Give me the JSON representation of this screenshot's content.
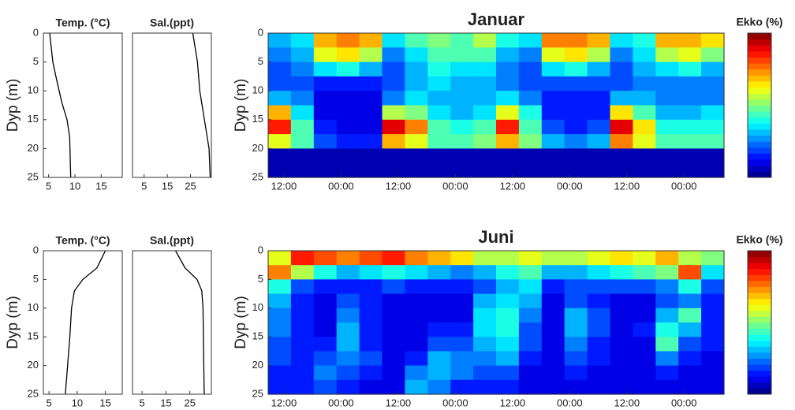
{
  "chart_data": [
    {
      "type": "profile",
      "title": "Temp. (°C)",
      "ylabel": "Dyp (m)",
      "color": "#000000",
      "x": [
        5.2,
        5.8,
        6.5,
        7.5,
        8.5,
        9,
        9.2
      ],
      "y": [
        0,
        5,
        8,
        12,
        15,
        18,
        25
      ],
      "xlim": [
        4,
        19
      ],
      "xticks": [
        5,
        10,
        15
      ],
      "ylim": [
        0,
        25
      ],
      "yticks": [
        0,
        5,
        10,
        15,
        20,
        25
      ]
    },
    {
      "type": "profile",
      "title": "Sal.(ppt)",
      "color": "#000000",
      "x": [
        26,
        28,
        29,
        31,
        33,
        33.5
      ],
      "y": [
        0,
        5,
        10,
        15,
        20,
        25
      ],
      "xlim": [
        0,
        34
      ],
      "xticks": [
        5,
        15,
        25
      ],
      "ylim": [
        0,
        25
      ]
    },
    {
      "type": "echogram",
      "title": "Januar",
      "ylabel": "Dyp (m)",
      "colorbar_label": "Ekko (%)",
      "zlim": [
        0,
        100
      ],
      "xlim": [
        8.7,
        104.4
      ],
      "xticks": [
        {
          "value": 12,
          "label": "12:00"
        },
        {
          "value": 24,
          "label": "00:00"
        },
        {
          "value": 36,
          "label": "12:00"
        },
        {
          "value": 48,
          "label": "00:00"
        },
        {
          "value": 60,
          "label": "12:00"
        },
        {
          "value": 72,
          "label": "00:00"
        },
        {
          "value": 84,
          "label": "12:00"
        },
        {
          "value": 96,
          "label": "00:00"
        }
      ],
      "ylim": [
        0,
        25
      ],
      "yticks": [
        0,
        5,
        10,
        15,
        20,
        25
      ],
      "z": [
        [
          30,
          35,
          70,
          75,
          70,
          35,
          45,
          50,
          45,
          55,
          40,
          35,
          75,
          75,
          70,
          35,
          40,
          70,
          70,
          65
        ],
        [
          25,
          30,
          60,
          65,
          55,
          25,
          35,
          45,
          45,
          45,
          30,
          25,
          60,
          65,
          55,
          25,
          35,
          55,
          60,
          50
        ],
        [
          20,
          25,
          35,
          40,
          30,
          20,
          30,
          40,
          35,
          35,
          25,
          20,
          35,
          40,
          30,
          20,
          30,
          35,
          40,
          30
        ],
        [
          20,
          20,
          15,
          15,
          15,
          20,
          30,
          35,
          30,
          30,
          25,
          20,
          20,
          20,
          20,
          20,
          25,
          25,
          25,
          25
        ],
        [
          30,
          25,
          10,
          10,
          10,
          25,
          35,
          30,
          30,
          30,
          35,
          25,
          15,
          15,
          15,
          30,
          30,
          25,
          25,
          25
        ],
        [
          70,
          35,
          10,
          10,
          10,
          55,
          50,
          35,
          30,
          35,
          60,
          40,
          15,
          15,
          15,
          65,
          45,
          30,
          30,
          35
        ],
        [
          85,
          45,
          15,
          10,
          10,
          90,
          75,
          45,
          40,
          45,
          85,
          45,
          20,
          15,
          20,
          90,
          65,
          40,
          40,
          40
        ],
        [
          60,
          45,
          20,
          15,
          15,
          70,
          60,
          45,
          45,
          50,
          70,
          50,
          30,
          25,
          30,
          75,
          60,
          45,
          45,
          45
        ],
        [
          5,
          5,
          5,
          5,
          5,
          5,
          5,
          5,
          5,
          5,
          5,
          5,
          5,
          5,
          5,
          5,
          5,
          5,
          5,
          5
        ],
        [
          5,
          5,
          5,
          5,
          5,
          5,
          5,
          5,
          5,
          5,
          5,
          5,
          5,
          5,
          5,
          5,
          5,
          5,
          5,
          5
        ]
      ]
    },
    {
      "type": "profile",
      "title": "Temp. (°C)",
      "ylabel": "Dyp (m)",
      "color": "#000000",
      "x": [
        15,
        13.5,
        11,
        9.5,
        9,
        8.7,
        8.3,
        7.9
      ],
      "y": [
        0,
        3,
        5,
        7,
        10,
        15,
        20,
        25
      ],
      "xlim": [
        4,
        18
      ],
      "xticks": [
        5,
        10,
        15
      ],
      "ylim": [
        0,
        25
      ],
      "yticks": [
        0,
        5,
        10,
        15,
        20,
        25
      ]
    },
    {
      "type": "profile",
      "title": "Sal.(ppt)",
      "color": "#000000",
      "x": [
        19,
        23,
        28,
        30,
        30.5,
        31
      ],
      "y": [
        0,
        3,
        5,
        7,
        10,
        25
      ],
      "xlim": [
        1,
        34
      ],
      "xticks": [
        5,
        15,
        25
      ],
      "ylim": [
        0,
        25
      ]
    },
    {
      "type": "echogram",
      "title": "Juni",
      "ylabel": "Dyp (m)",
      "colorbar_label": "Ekko (%)",
      "zlim": [
        0,
        100
      ],
      "xlim": [
        8.7,
        104.4
      ],
      "xticks": [
        {
          "value": 12,
          "label": "12:00"
        },
        {
          "value": 24,
          "label": "00:00"
        },
        {
          "value": 36,
          "label": "12:00"
        },
        {
          "value": 48,
          "label": "00:00"
        },
        {
          "value": 60,
          "label": "12:00"
        },
        {
          "value": 72,
          "label": "00:00"
        },
        {
          "value": 84,
          "label": "12:00"
        },
        {
          "value": 96,
          "label": "00:00"
        }
      ],
      "ylim": [
        0,
        25
      ],
      "yticks": [
        0,
        5,
        10,
        15,
        20,
        25
      ],
      "z": [
        [
          60,
          85,
          80,
          75,
          80,
          85,
          75,
          70,
          65,
          55,
          55,
          60,
          55,
          55,
          60,
          65,
          60,
          70,
          55,
          50
        ],
        [
          75,
          55,
          40,
          30,
          35,
          40,
          35,
          30,
          25,
          30,
          40,
          45,
          30,
          30,
          35,
          40,
          45,
          50,
          80,
          35
        ],
        [
          40,
          20,
          15,
          15,
          15,
          20,
          15,
          15,
          15,
          20,
          30,
          35,
          15,
          20,
          20,
          20,
          20,
          25,
          40,
          20
        ],
        [
          30,
          15,
          10,
          20,
          15,
          10,
          10,
          10,
          10,
          30,
          35,
          30,
          10,
          20,
          15,
          10,
          10,
          20,
          25,
          15
        ],
        [
          25,
          15,
          10,
          25,
          15,
          10,
          10,
          10,
          10,
          35,
          40,
          25,
          10,
          30,
          20,
          10,
          10,
          30,
          45,
          15
        ],
        [
          25,
          15,
          10,
          30,
          15,
          10,
          10,
          15,
          15,
          35,
          40,
          20,
          10,
          30,
          20,
          10,
          15,
          40,
          30,
          15
        ],
        [
          20,
          15,
          15,
          30,
          15,
          10,
          10,
          20,
          20,
          30,
          35,
          20,
          10,
          25,
          15,
          10,
          10,
          45,
          20,
          15
        ],
        [
          20,
          15,
          20,
          25,
          20,
          10,
          15,
          30,
          25,
          25,
          30,
          15,
          10,
          20,
          15,
          10,
          10,
          25,
          15,
          10
        ],
        [
          15,
          15,
          25,
          20,
          15,
          10,
          25,
          30,
          25,
          20,
          20,
          10,
          10,
          15,
          10,
          10,
          10,
          15,
          10,
          10
        ],
        [
          15,
          15,
          20,
          15,
          10,
          10,
          30,
          25,
          15,
          15,
          15,
          10,
          10,
          10,
          10,
          10,
          10,
          10,
          10,
          10
        ]
      ]
    }
  ]
}
